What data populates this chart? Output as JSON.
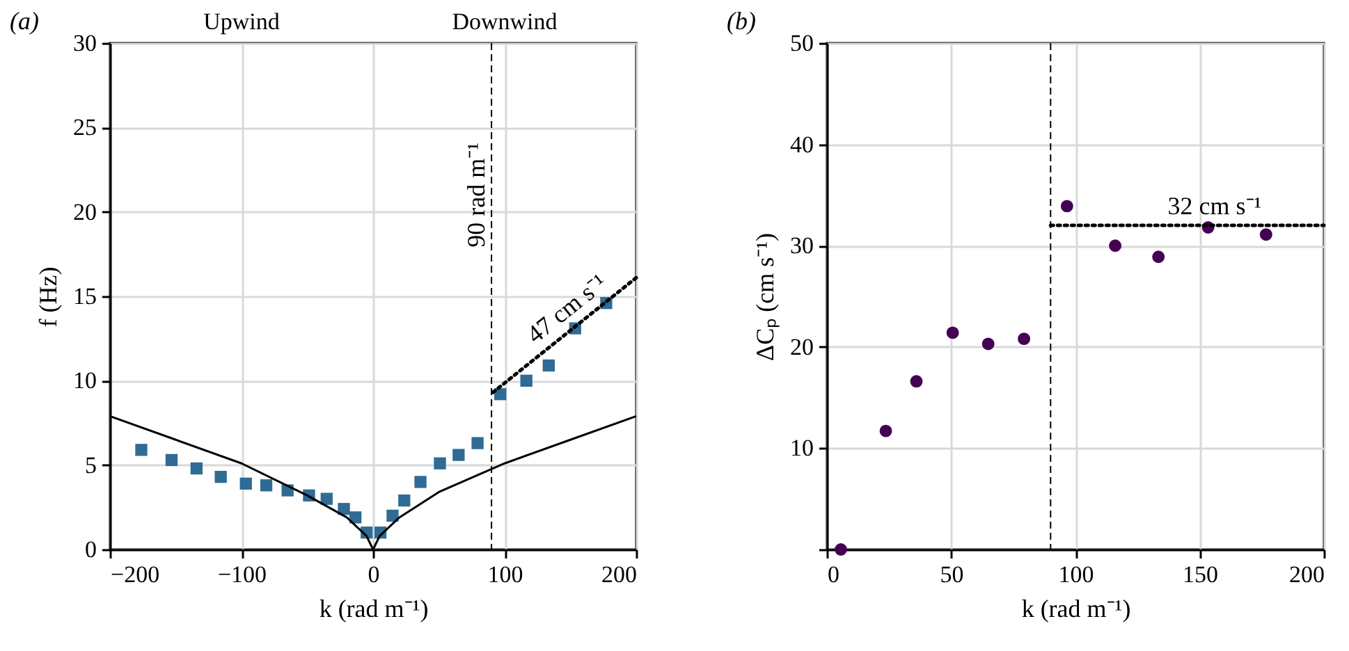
{
  "chart_data": [
    {
      "type": "scatter",
      "title": "(a)",
      "xlabel": "k (rad m⁻¹)",
      "ylabel": "f (Hz)",
      "xlim": [
        -200,
        200
      ],
      "xticks": [
        -200,
        -100,
        0,
        100,
        200
      ],
      "ylim": [
        0,
        30
      ],
      "yticks": [
        0,
        5,
        10,
        15,
        20,
        25,
        30
      ],
      "grid": true,
      "marker": "square",
      "x": [
        -176.2,
        -153.2,
        -134.2,
        -115.8,
        -96.7,
        -81.2,
        -65,
        -48.7,
        -35.3,
        -22.2,
        -13.4,
        -4.9,
        5.6,
        14.8,
        23.7,
        36,
        50.8,
        65,
        79.4,
        96.7,
        116.5,
        133.5,
        153.6,
        177.2
      ],
      "series": [
        {
          "color": "#2f6b94",
          "values": [
            5.9,
            5.3,
            4.8,
            4.3,
            3.9,
            3.8,
            3.5,
            3.2,
            3.0,
            2.4,
            1.9,
            1.0,
            1.0,
            2.0,
            2.9,
            4.0,
            5.1,
            5.6,
            6.3,
            9.2,
            10.0,
            10.9,
            13.1,
            14.6
          ]
        },
        {
          "type": "line",
          "color": "#000000",
          "line_style": "solid",
          "marker": "none",
          "x": [
            -200,
            -150,
            -100,
            -50,
            -20,
            -5,
            0,
            5,
            20,
            50,
            100,
            150,
            200
          ],
          "values": [
            7.9,
            6.5,
            5.1,
            3.2,
            1.9,
            0.8,
            0,
            0.8,
            1.9,
            3.4,
            5.1,
            6.5,
            7.9
          ]
        },
        {
          "type": "line",
          "name": "47 cm s⁻¹",
          "color": "#000000",
          "line_style": "dotted",
          "marker": "none",
          "x": [
            91,
            200
          ],
          "values": [
            9.3,
            16.1
          ]
        }
      ],
      "ref_lines": [
        {
          "axis": "x",
          "value": 90,
          "label": "90 rad m⁻¹",
          "line_style": "dashed",
          "color": "#000000"
        }
      ],
      "annotations": [
        "Upwind",
        "Downwind"
      ]
    },
    {
      "type": "scatter",
      "title": "(b)",
      "xlabel": "k (rad m⁻¹)",
      "ylabel": "ΔCₚ (cm s⁻¹)",
      "xlim": [
        0,
        200
      ],
      "xticks": [
        0,
        50,
        100,
        150,
        200
      ],
      "ylim": [
        0,
        50
      ],
      "yticks": [
        {
          "value": 0,
          "label": null
        },
        10,
        20,
        30,
        40,
        50
      ],
      "grid": true,
      "marker": "circle",
      "x": [
        5.6,
        23.7,
        36,
        50.6,
        64.9,
        79.3,
        96.6,
        116,
        133.4,
        153.4,
        176.7
      ],
      "series": [
        {
          "color": "#440154",
          "values": [
            0,
            11.7,
            16.6,
            21.4,
            20.3,
            20.8,
            33.9,
            30.0,
            28.9,
            31.8,
            31.1
          ]
        },
        {
          "type": "line",
          "name": "32 cm s⁻¹",
          "color": "#000000",
          "line_style": "dotted",
          "marker": "none",
          "x": [
            90,
            200
          ],
          "values": [
            32,
            32
          ]
        }
      ],
      "ref_lines": [
        {
          "axis": "x",
          "value": 90,
          "line_style": "dashed",
          "color": "#000000"
        }
      ]
    }
  ]
}
